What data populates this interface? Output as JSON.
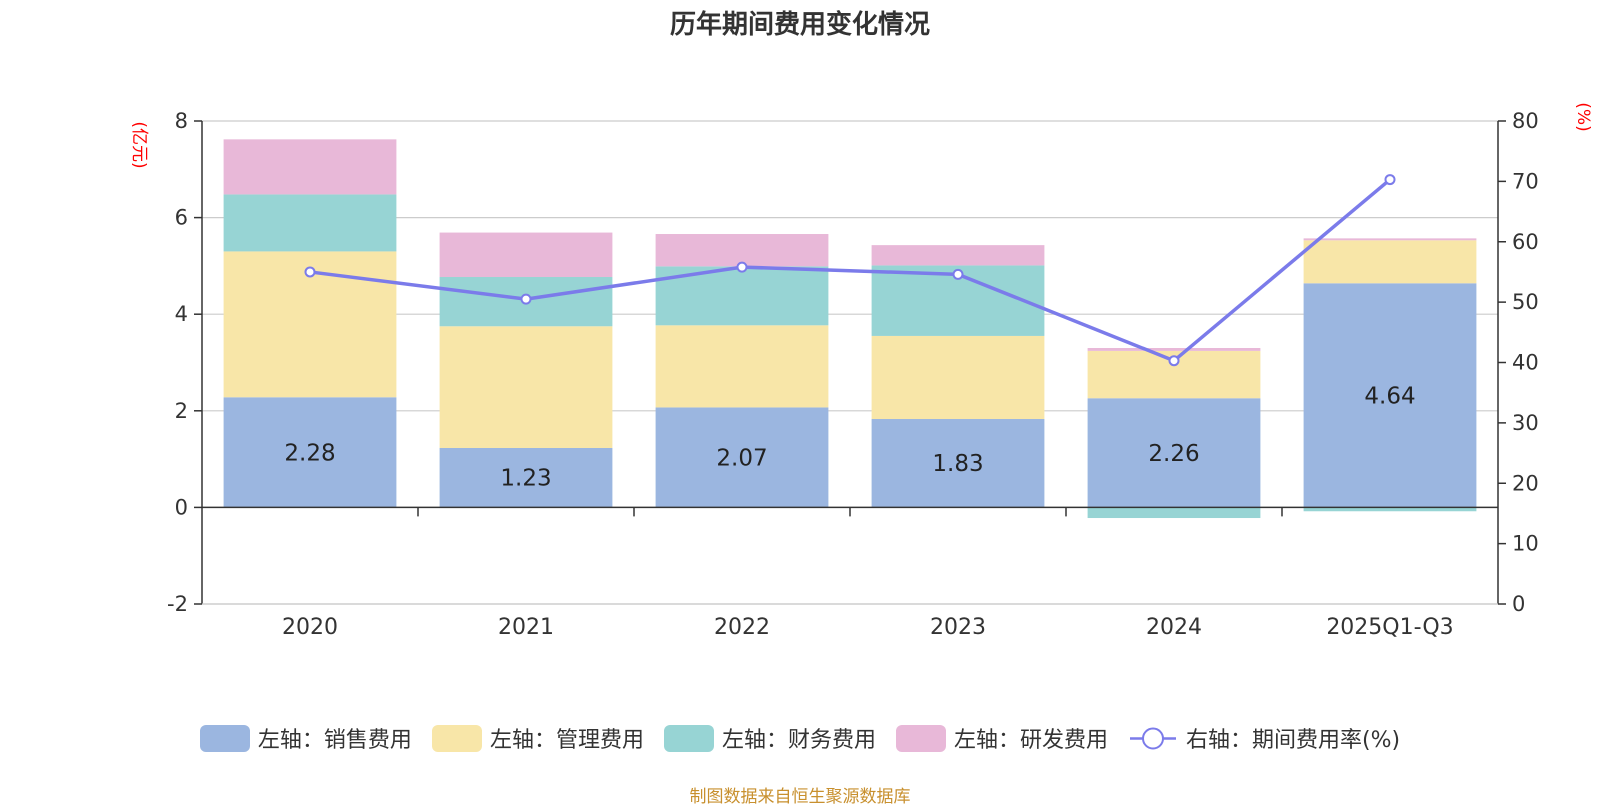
{
  "chart_data": {
    "type": "bar",
    "title": "历年期间费用变化情况",
    "categories": [
      "2020",
      "2021",
      "2022",
      "2023",
      "2024",
      "2025Q1-Q3"
    ],
    "left_axis": {
      "label": "(亿元)",
      "min": -2,
      "max": 8,
      "ticks": [
        -2,
        0,
        2,
        4,
        6,
        8
      ],
      "color": "#ff0000"
    },
    "right_axis": {
      "label": "(%)",
      "min": 0,
      "max": 80,
      "ticks": [
        0,
        10,
        20,
        30,
        40,
        50,
        60,
        70,
        80
      ],
      "color": "#ff0000"
    },
    "series": [
      {
        "name": "左轴：销售费用",
        "type": "bar",
        "axis": "left",
        "color": "#9bb6e0",
        "values": [
          2.28,
          1.23,
          2.07,
          1.83,
          2.26,
          4.64
        ],
        "show_labels": true
      },
      {
        "name": "左轴：管理费用",
        "type": "bar",
        "axis": "left",
        "color": "#f8e6a8",
        "values": [
          3.02,
          2.52,
          1.7,
          1.72,
          0.98,
          0.89
        ]
      },
      {
        "name": "左轴：财务费用",
        "type": "bar",
        "axis": "left",
        "color": "#97d4d4",
        "values": [
          1.18,
          1.02,
          1.22,
          1.46,
          -0.22,
          -0.08
        ]
      },
      {
        "name": "左轴：研发费用",
        "type": "bar",
        "axis": "left",
        "color": "#e8b8d8",
        "values": [
          1.14,
          0.92,
          0.67,
          0.42,
          0.06,
          0.04
        ]
      },
      {
        "name": "右轴：期间费用率(%)",
        "type": "line",
        "axis": "right",
        "color": "#7b7bea",
        "values": [
          55.0,
          50.5,
          55.8,
          54.6,
          40.3,
          70.3
        ]
      }
    ],
    "grid": true,
    "legend": "bottom-center"
  },
  "source": "制图数据来自恒生聚源数据库"
}
